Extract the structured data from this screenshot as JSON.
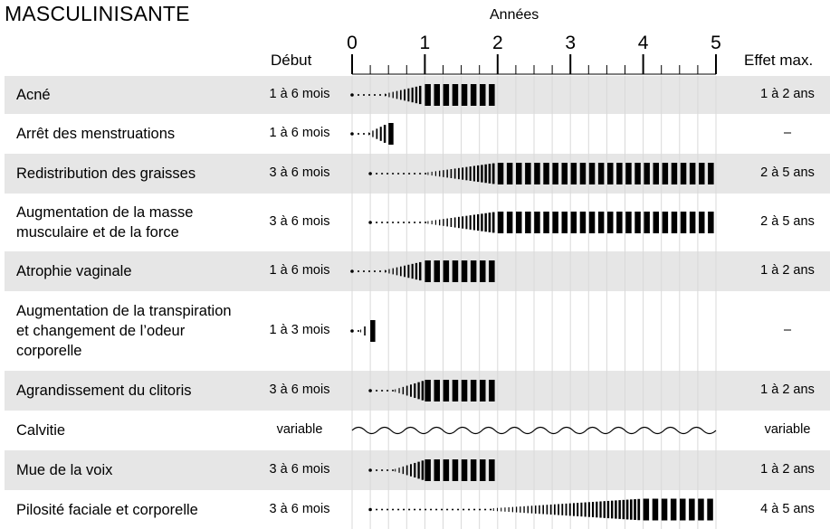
{
  "chart_data": {
    "type": "timeline",
    "title": "MASCULINISANTE",
    "xlabel": "Années",
    "x_ticks": [
      "0",
      "1",
      "2",
      "3",
      "4",
      "5"
    ],
    "xlim": [
      0,
      5
    ],
    "columns": {
      "debut": "Début",
      "effet_max": "Effet max."
    },
    "rows": [
      {
        "label": "Acné",
        "debut": "1 à 6 mois",
        "effet_max": "1 à 2 ans",
        "onset": 0,
        "full_from": 1.0,
        "full_to": 2,
        "variable": false,
        "shaded": true
      },
      {
        "label": "Arrêt des menstruations",
        "debut": "1 à 6 mois",
        "effet_max": "–",
        "onset": 0,
        "full_from": 0.5,
        "full_to": 0.55,
        "variable": false,
        "shaded": false
      },
      {
        "label": "Redistribution des graisses",
        "debut": "3 à 6 mois",
        "effet_max": "2 à 5 ans",
        "onset": 0.25,
        "full_from": 2,
        "full_to": 5,
        "variable": false,
        "shaded": true
      },
      {
        "label": "Augmentation de la masse musculaire et de la force",
        "debut": "3 à 6 mois",
        "effet_max": "2 à 5 ans",
        "onset": 0.25,
        "full_from": 2,
        "full_to": 5,
        "variable": false,
        "shaded": false
      },
      {
        "label": "Atrophie vaginale",
        "debut": "1 à 6 mois",
        "effet_max": "1 à 2 ans",
        "onset": 0,
        "full_from": 1.0,
        "full_to": 2,
        "variable": false,
        "shaded": true
      },
      {
        "label": "Augmentation de la transpiration et changement de l’odeur corporelle",
        "debut": "1 à 3 mois",
        "effet_max": "–",
        "onset": 0,
        "full_from": 0.25,
        "full_to": 0.3,
        "variable": false,
        "shaded": false
      },
      {
        "label": "Agrandissement du clitoris",
        "debut": "3 à 6 mois",
        "effet_max": "1 à 2 ans",
        "onset": 0.25,
        "full_from": 1.0,
        "full_to": 2,
        "variable": false,
        "shaded": true
      },
      {
        "label": "Calvitie",
        "debut": "variable",
        "effet_max": "variable",
        "onset": 0,
        "full_from": 0,
        "full_to": 5,
        "variable": true,
        "shaded": false
      },
      {
        "label": "Mue de la voix",
        "debut": "3 à 6 mois",
        "effet_max": "1 à 2 ans",
        "onset": 0.25,
        "full_from": 1.0,
        "full_to": 2,
        "variable": false,
        "shaded": true
      },
      {
        "label": "Pilosité faciale et corporelle",
        "debut": "3 à 6 mois",
        "effet_max": "4 à 5 ans",
        "onset": 0.25,
        "full_from": 4,
        "full_to": 5,
        "variable": false,
        "shaded": false
      }
    ]
  }
}
